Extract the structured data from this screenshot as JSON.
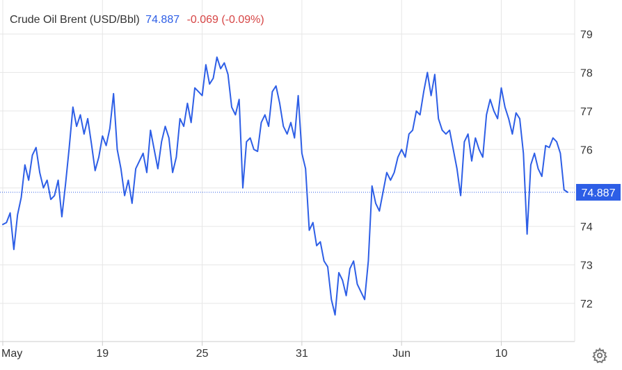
{
  "header": {
    "title": "Crude Oil Brent (USD/Bbl)",
    "price": "74.887",
    "change": "-0.069 (-0.09%)"
  },
  "colors": {
    "line": "#2d5ee6",
    "price_text": "#2d5ee6",
    "change_text": "#d64545",
    "grid": "#e6e6e6",
    "axis_text": "#333333",
    "price_tag_bg": "#2d5ee6",
    "price_tag_text": "#ffffff",
    "gear": "#777777"
  },
  "icons": {
    "settings": "gear-icon"
  },
  "chart_data": {
    "type": "line",
    "title": "Crude Oil Brent (USD/Bbl)",
    "xlabel": "",
    "ylabel": "",
    "ylim": [
      71.1,
      79.7
    ],
    "grid": true,
    "legend": "none",
    "last_value": 74.887,
    "last_value_label": "74.887",
    "y_ticks": [
      72,
      73,
      74,
      75,
      76,
      77,
      78,
      79
    ],
    "y_tick_labels": [
      "72",
      "73",
      "74",
      "75",
      "76",
      "77",
      "78",
      "79"
    ],
    "x_tick_labels": [
      "May",
      "19",
      "25",
      "31",
      "Jun",
      "10"
    ],
    "x_tick_index": [
      0,
      27,
      54,
      81,
      108,
      135
    ],
    "series": [
      {
        "values": [
          74.05,
          74.1,
          74.35,
          73.4,
          74.3,
          74.75,
          75.6,
          75.2,
          75.85,
          76.05,
          75.4,
          75.0,
          75.2,
          74.7,
          74.8,
          75.2,
          74.25,
          75.1,
          76.05,
          77.1,
          76.6,
          76.9,
          76.4,
          76.8,
          76.15,
          75.45,
          75.8,
          76.35,
          76.1,
          76.55,
          77.45,
          76.0,
          75.5,
          74.8,
          75.2,
          74.6,
          75.5,
          75.7,
          75.9,
          75.4,
          76.5,
          76.0,
          75.5,
          76.2,
          76.6,
          76.3,
          75.4,
          75.8,
          76.8,
          76.6,
          77.2,
          76.7,
          77.6,
          77.5,
          77.4,
          78.2,
          77.7,
          77.85,
          78.4,
          78.1,
          78.25,
          77.95,
          77.1,
          76.9,
          77.3,
          75.0,
          76.2,
          76.3,
          76.0,
          75.95,
          76.7,
          76.9,
          76.6,
          77.5,
          77.65,
          77.2,
          76.6,
          76.4,
          76.7,
          76.3,
          77.4,
          75.9,
          75.5,
          73.9,
          74.1,
          73.5,
          73.6,
          73.1,
          72.95,
          72.1,
          71.7,
          72.8,
          72.6,
          72.2,
          72.9,
          73.1,
          72.5,
          72.3,
          72.1,
          73.1,
          75.05,
          74.6,
          74.4,
          74.9,
          75.4,
          75.2,
          75.4,
          75.8,
          76.0,
          75.8,
          76.4,
          76.5,
          77.0,
          76.9,
          77.5,
          78.0,
          77.4,
          77.95,
          76.8,
          76.5,
          76.4,
          76.5,
          76.0,
          75.5,
          74.8,
          76.2,
          76.4,
          75.7,
          76.3,
          76.0,
          75.8,
          76.9,
          77.3,
          77.0,
          76.8,
          77.6,
          77.1,
          76.8,
          76.4,
          76.95,
          76.8,
          75.9,
          73.8,
          75.6,
          75.9,
          75.5,
          75.3,
          76.1,
          76.05,
          76.3,
          76.2,
          75.9,
          74.95,
          74.887
        ]
      }
    ]
  }
}
